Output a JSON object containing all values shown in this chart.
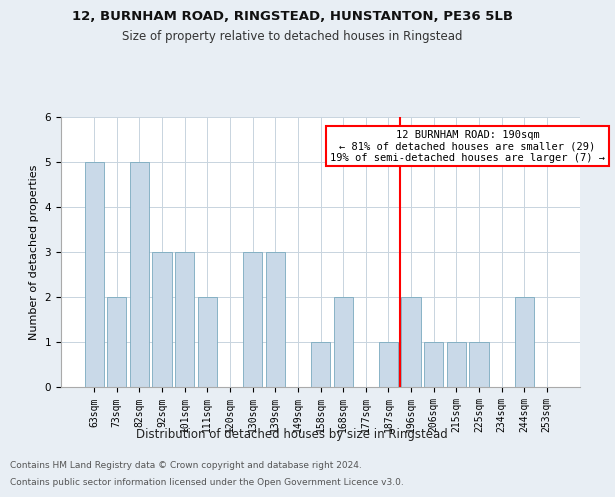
{
  "title1": "12, BURNHAM ROAD, RINGSTEAD, HUNSTANTON, PE36 5LB",
  "title2": "Size of property relative to detached houses in Ringstead",
  "xlabel": "Distribution of detached houses by size in Ringstead",
  "ylabel": "Number of detached properties",
  "categories": [
    "63sqm",
    "73sqm",
    "82sqm",
    "92sqm",
    "101sqm",
    "111sqm",
    "120sqm",
    "130sqm",
    "139sqm",
    "149sqm",
    "158sqm",
    "168sqm",
    "177sqm",
    "187sqm",
    "196sqm",
    "206sqm",
    "215sqm",
    "225sqm",
    "234sqm",
    "244sqm",
    "253sqm"
  ],
  "values": [
    5,
    2,
    5,
    3,
    3,
    2,
    0,
    3,
    3,
    0,
    1,
    2,
    0,
    1,
    2,
    1,
    1,
    1,
    0,
    2,
    0
  ],
  "bar_color": "#c9d9e8",
  "bar_edge_color": "#7aaabf",
  "vline_x": 13.5,
  "annotation_line1": "12 BURNHAM ROAD: 190sqm",
  "annotation_line2": "← 81% of detached houses are smaller (29)",
  "annotation_line3": "19% of semi-detached houses are larger (7) →",
  "annotation_box_color": "white",
  "annotation_box_edge_color": "red",
  "vline_color": "red",
  "ylim": [
    0,
    6
  ],
  "yticks": [
    0,
    1,
    2,
    3,
    4,
    5,
    6
  ],
  "footer1": "Contains HM Land Registry data © Crown copyright and database right 2024.",
  "footer2": "Contains public sector information licensed under the Open Government Licence v3.0.",
  "background_color": "#e8eef4",
  "plot_background_color": "#ffffff",
  "grid_color": "#c8d4de",
  "title_fontsize": 9.5,
  "subtitle_fontsize": 8.5,
  "tick_fontsize": 7,
  "ylabel_fontsize": 8,
  "xlabel_fontsize": 8.5,
  "footer_fontsize": 6.5,
  "ann_fontsize": 7.5
}
